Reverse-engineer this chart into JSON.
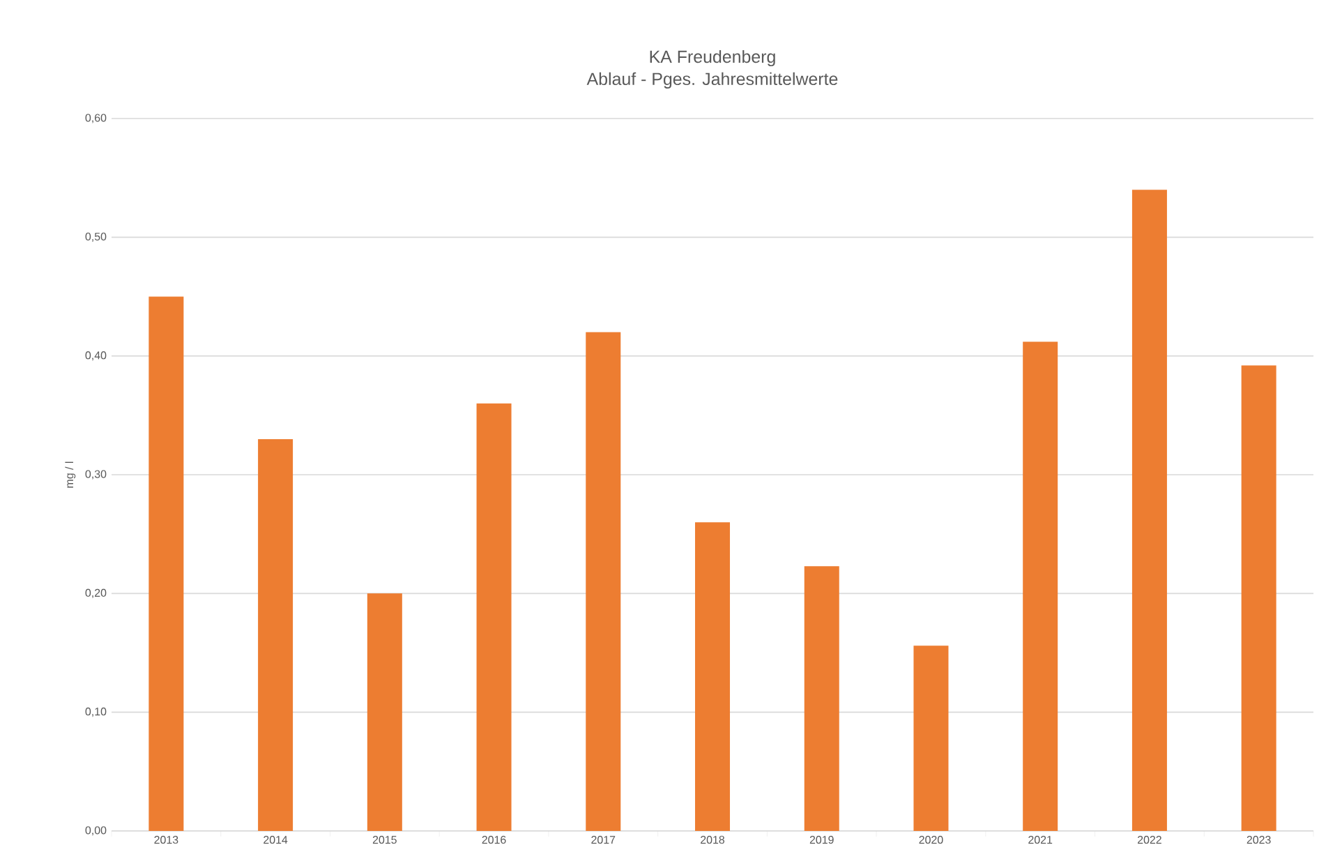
{
  "chart_data": {
    "type": "bar",
    "title": "KA Freudenberg",
    "subtitle": "Ablauf - Pges. Jahresmittelwerte",
    "ylabel": "mg / l",
    "categories": [
      "2013",
      "2014",
      "2015",
      "2016",
      "2017",
      "2018",
      "2019",
      "2020",
      "2021",
      "2022",
      "2023"
    ],
    "values": [
      0.45,
      0.33,
      0.2,
      0.36,
      0.42,
      0.26,
      0.223,
      0.156,
      0.412,
      0.54,
      0.392
    ],
    "color": "#ed7d31",
    "ylim": [
      0,
      0.6
    ],
    "yticks": [
      {
        "value": 0,
        "label": "0,00"
      },
      {
        "value": 0.1,
        "label": "0,10"
      },
      {
        "value": 0.2,
        "label": "0,20"
      },
      {
        "value": 0.3,
        "label": "0,30"
      },
      {
        "value": 0.4,
        "label": "0,40"
      },
      {
        "value": 0.5,
        "label": "0,50"
      },
      {
        "value": 0.6,
        "label": "0,60"
      }
    ],
    "grid": "y"
  }
}
